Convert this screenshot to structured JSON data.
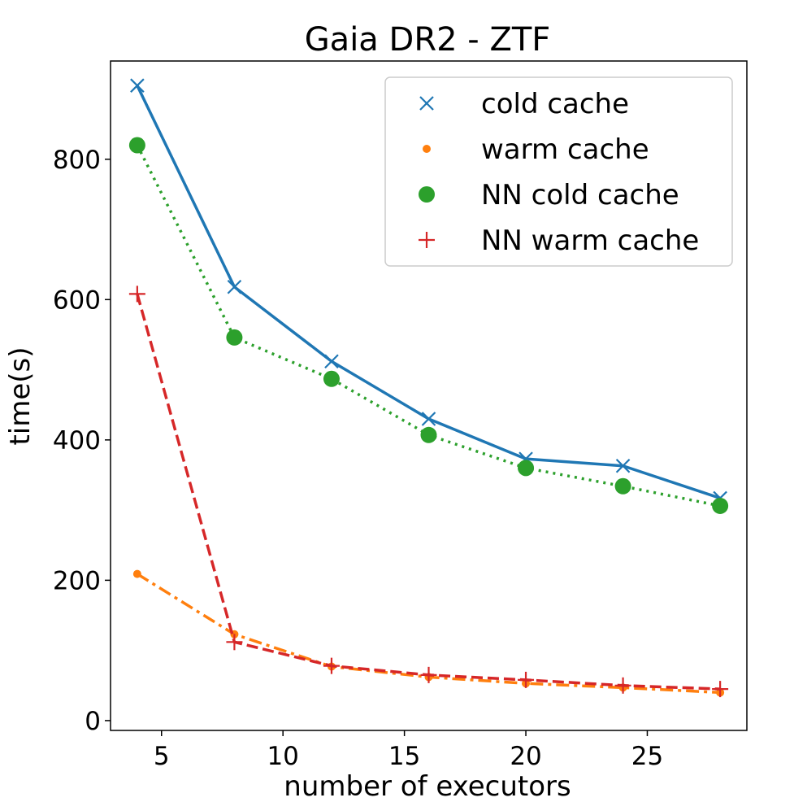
{
  "chart_data": {
    "type": "line",
    "title": "Gaia DR2 - ZTF",
    "xlabel": "number of executors",
    "ylabel": "time(s)",
    "xlim": [
      2.9,
      29.1
    ],
    "ylim": [
      -14,
      940
    ],
    "xticks": [
      5,
      10,
      15,
      20,
      25
    ],
    "yticks": [
      0,
      200,
      400,
      600,
      800
    ],
    "legend_position": "top-right",
    "grid": false,
    "x": [
      4,
      8,
      12,
      16,
      20,
      24,
      28
    ],
    "series": [
      {
        "name": "cold cache",
        "values": [
          905,
          618,
          512,
          430,
          373,
          363,
          317
        ],
        "color": "#1f77b4",
        "line": "solid",
        "marker": "x"
      },
      {
        "name": "warm cache",
        "values": [
          209,
          123,
          77,
          62,
          53,
          47,
          40
        ],
        "color": "#ff7f0e",
        "line": "dashdot",
        "marker": "dot"
      },
      {
        "name": "NN cold cache",
        "values": [
          820,
          546,
          487,
          407,
          360,
          334,
          306
        ],
        "color": "#2ca02c",
        "line": "dotted",
        "marker": "circle"
      },
      {
        "name": "NN warm cache",
        "values": [
          608,
          112,
          78,
          65,
          58,
          50,
          45
        ],
        "color": "#d62728",
        "line": "dashed",
        "marker": "plus"
      }
    ]
  }
}
